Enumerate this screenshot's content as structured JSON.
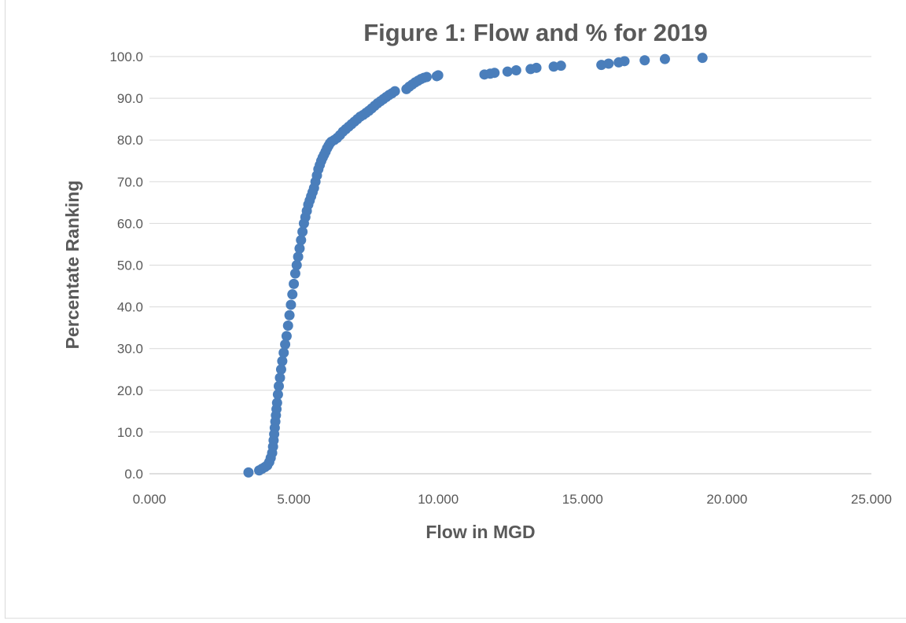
{
  "chart_data": {
    "type": "scatter",
    "title": "Figure 1: Flow and % for 2019",
    "xlabel": "Flow in MGD",
    "ylabel": "Percentate Ranking",
    "xlim": [
      0,
      25
    ],
    "ylim": [
      0,
      100
    ],
    "x_ticks": [
      0,
      5,
      10,
      15,
      20,
      25
    ],
    "x_tick_labels": [
      "0.000",
      "5.000",
      "10.000",
      "15.000",
      "20.000",
      "25.000"
    ],
    "y_ticks": [
      0,
      10,
      20,
      30,
      40,
      50,
      60,
      70,
      80,
      90,
      100
    ],
    "y_tick_labels": [
      "0.0",
      "10.0",
      "20.0",
      "30.0",
      "40.0",
      "50.0",
      "60.0",
      "70.0",
      "80.0",
      "90.0",
      "100.0"
    ],
    "grid": "horizontal",
    "legend": "none",
    "marker_color": "#4a7ebb",
    "series": [
      {
        "x": [
          3.43,
          3.8,
          3.9,
          4.0,
          4.08,
          4.15,
          4.2,
          4.25,
          4.28,
          4.3,
          4.32,
          4.34,
          4.36,
          4.38,
          4.4,
          4.42,
          4.45,
          4.48,
          4.52,
          4.56,
          4.6,
          4.65,
          4.7,
          4.75,
          4.8,
          4.85,
          4.9,
          4.95,
          5.0,
          5.05,
          5.1,
          5.15,
          5.2,
          5.25,
          5.3,
          5.35,
          5.4,
          5.45,
          5.5,
          5.55,
          5.6,
          5.65,
          5.7,
          5.75,
          5.8,
          5.85,
          5.9,
          5.95,
          6.0,
          6.05,
          6.1,
          6.15,
          6.2,
          6.25,
          6.3,
          6.4,
          6.5,
          6.6,
          6.7,
          6.8,
          6.9,
          7.0,
          7.1,
          7.2,
          7.3,
          7.4,
          7.5,
          7.6,
          7.7,
          7.8,
          7.9,
          8.0,
          8.1,
          8.2,
          8.3,
          8.4,
          8.5,
          8.9,
          9.0,
          9.1,
          9.2,
          9.3,
          9.4,
          9.5,
          9.6,
          9.95,
          10.0,
          11.6,
          11.8,
          11.95,
          12.4,
          12.7,
          13.2,
          13.4,
          14.0,
          14.25,
          15.65,
          15.9,
          16.25,
          16.45,
          17.15,
          17.85,
          19.15
        ],
        "y": [
          0.3,
          0.8,
          1.2,
          1.6,
          2.0,
          2.8,
          3.8,
          5.0,
          6.5,
          8.0,
          9.5,
          11.0,
          12.5,
          14.0,
          15.5,
          17.0,
          19.0,
          21.0,
          23.0,
          25.0,
          27.0,
          29.0,
          31.0,
          33.0,
          35.5,
          38.0,
          40.5,
          43.0,
          45.5,
          48.0,
          50.0,
          52.0,
          54.0,
          56.0,
          58.0,
          60.0,
          61.5,
          63.0,
          64.5,
          65.5,
          66.5,
          67.5,
          68.5,
          70.0,
          71.5,
          73.0,
          74.0,
          75.0,
          75.8,
          76.5,
          77.2,
          78.0,
          78.6,
          79.2,
          79.6,
          80.0,
          80.5,
          81.2,
          82.0,
          82.6,
          83.2,
          83.8,
          84.4,
          85.0,
          85.6,
          86.0,
          86.5,
          87.0,
          87.6,
          88.2,
          88.8,
          89.3,
          89.8,
          90.3,
          90.8,
          91.2,
          91.7,
          92.2,
          92.8,
          93.3,
          93.8,
          94.2,
          94.6,
          94.9,
          95.1,
          95.3,
          95.5,
          95.7,
          95.9,
          96.1,
          96.4,
          96.7,
          97.0,
          97.3,
          97.6,
          97.8,
          98.0,
          98.3,
          98.6,
          98.9,
          99.1,
          99.4,
          99.7
        ]
      }
    ]
  }
}
